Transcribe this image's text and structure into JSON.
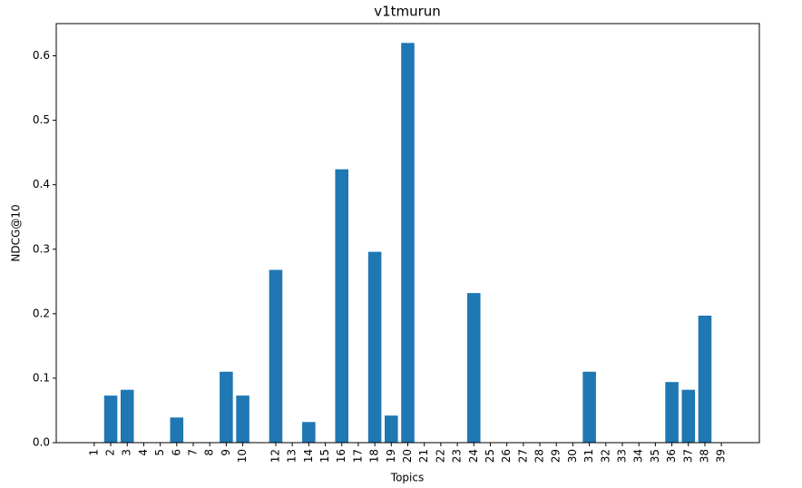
{
  "chart_data": {
    "type": "bar",
    "title": "v1tmurun",
    "xlabel": "Topics",
    "ylabel": "NDCG@10",
    "x": [
      1,
      2,
      3,
      4,
      5,
      6,
      7,
      8,
      9,
      10,
      12,
      13,
      14,
      15,
      16,
      17,
      18,
      19,
      20,
      21,
      22,
      23,
      24,
      25,
      26,
      27,
      28,
      29,
      30,
      31,
      32,
      33,
      34,
      35,
      36,
      37,
      38,
      39
    ],
    "values": [
      0,
      0.073,
      0.082,
      0,
      0,
      0.039,
      0,
      0,
      0.11,
      0.073,
      0.268,
      0,
      0.032,
      0,
      0.424,
      0,
      0.296,
      0.042,
      0.62,
      0,
      0,
      0,
      0.232,
      0,
      0,
      0,
      0,
      0,
      0,
      0.11,
      0,
      0,
      0,
      0,
      0.094,
      0.082,
      0.197,
      0
    ],
    "color": "#1f77b4",
    "xlim": [
      -1.3,
      41.3
    ],
    "xticks": [
      1,
      2,
      3,
      4,
      5,
      6,
      7,
      8,
      9,
      10,
      12,
      13,
      14,
      15,
      16,
      17,
      18,
      19,
      20,
      21,
      22,
      23,
      24,
      25,
      26,
      27,
      28,
      29,
      30,
      31,
      32,
      33,
      34,
      35,
      36,
      37,
      38,
      39
    ],
    "ylim": [
      0,
      0.65
    ],
    "yticks": [
      {
        "value": 0,
        "label": "0.0"
      },
      0.1,
      0.2,
      0.3,
      0.4,
      0.5,
      0.6
    ]
  }
}
